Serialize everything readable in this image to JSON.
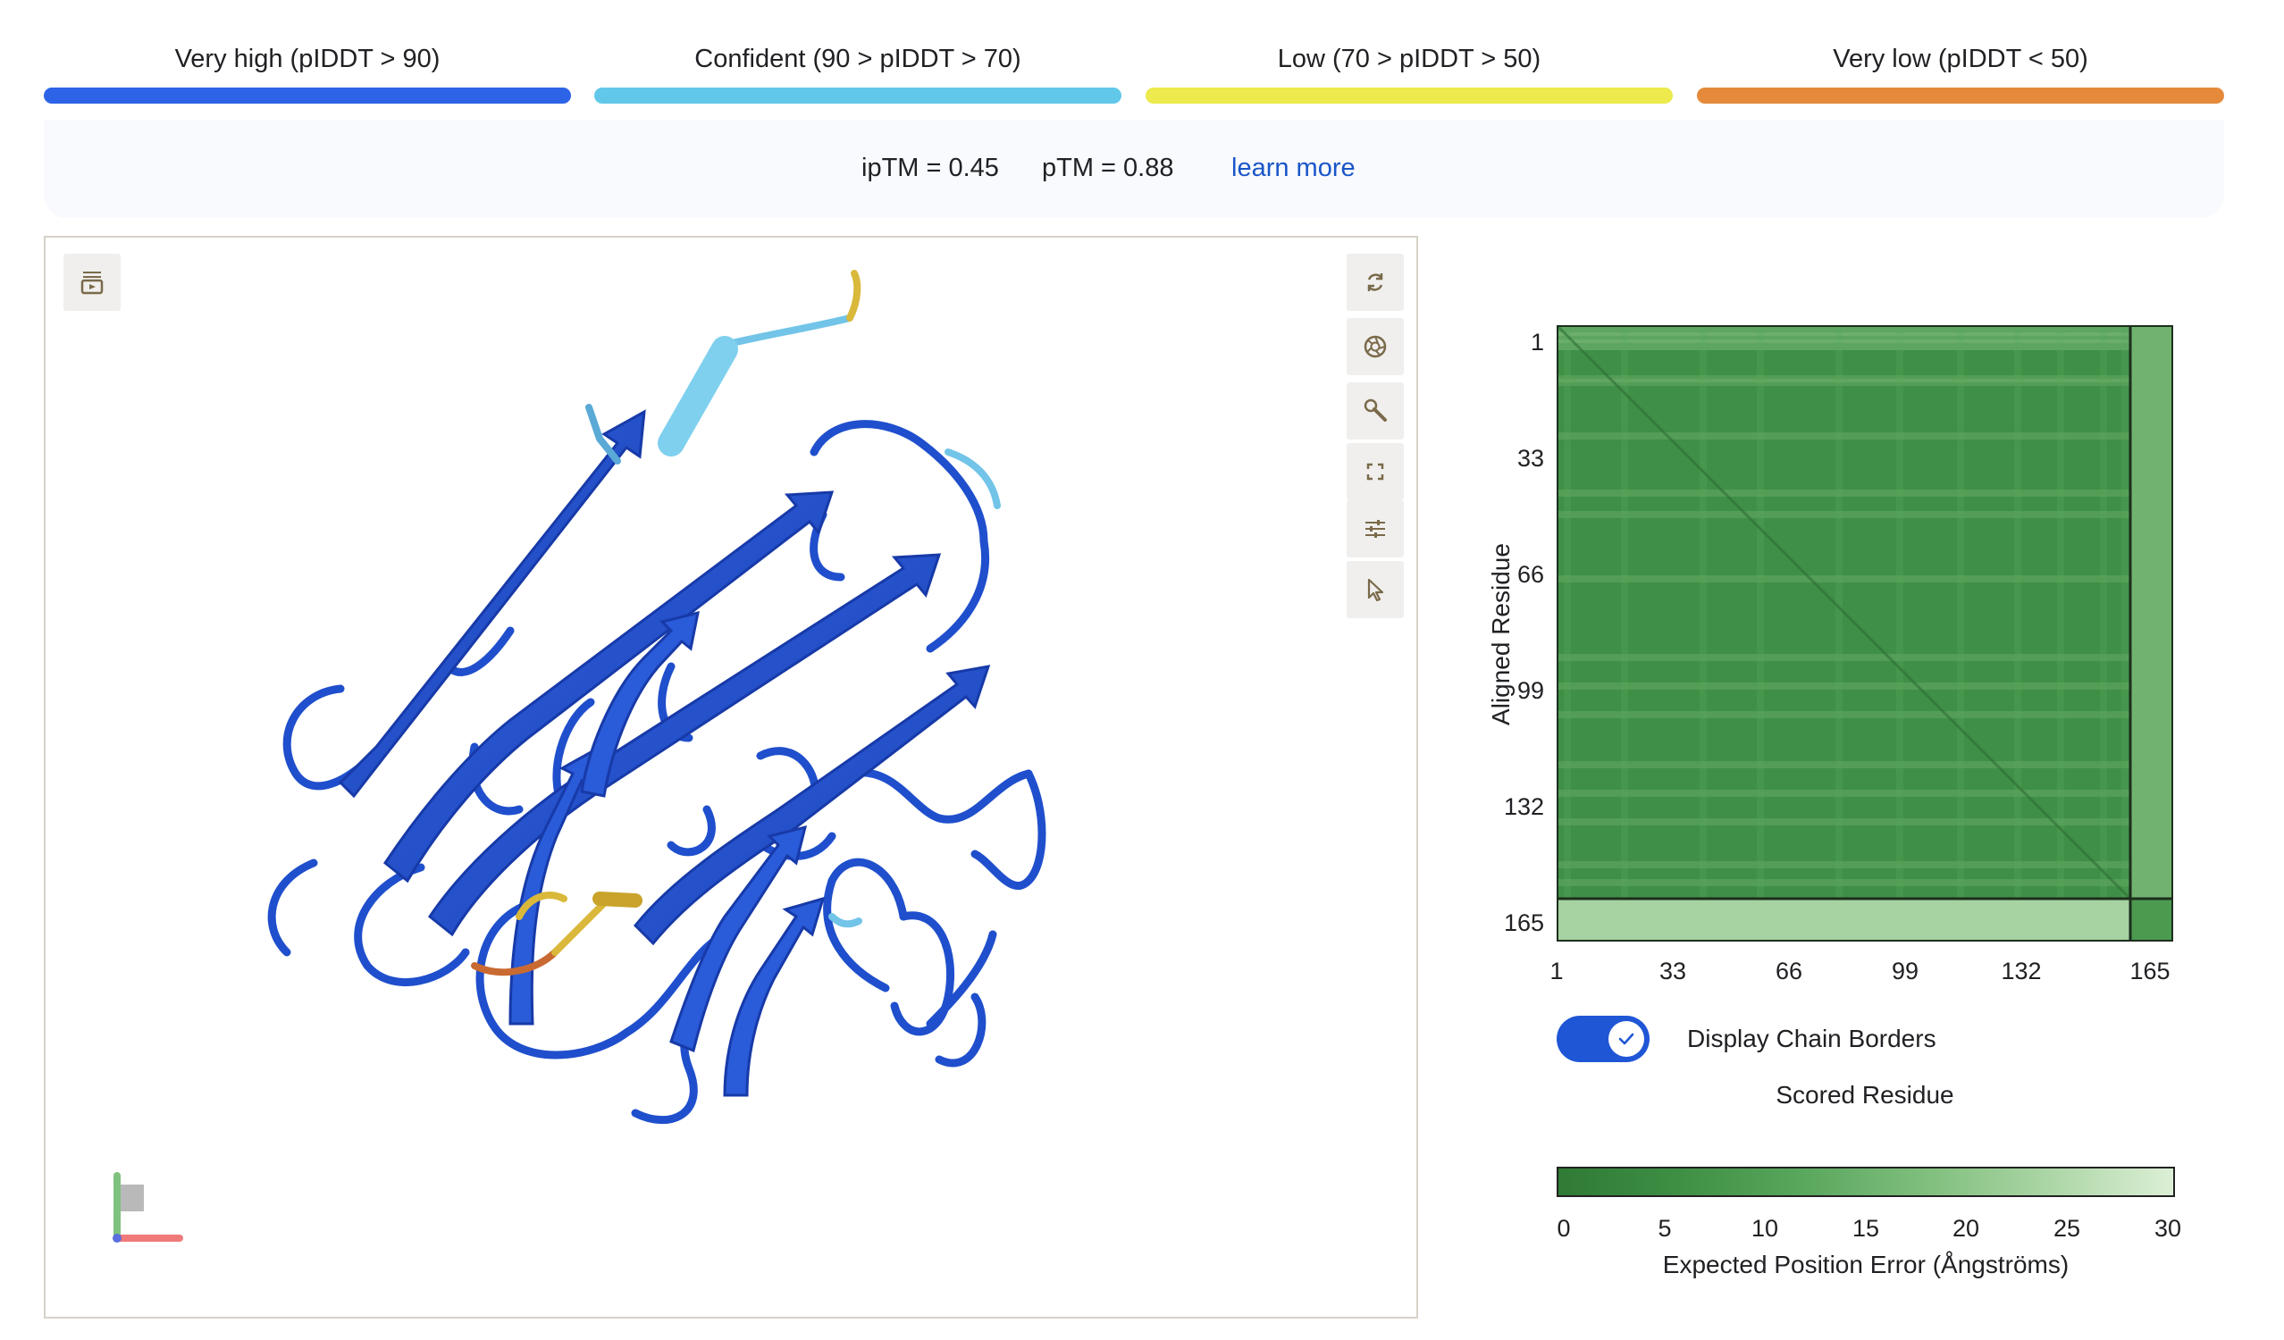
{
  "legend": {
    "items": [
      {
        "label": "Very high (pIDDT > 90)",
        "color": "#2d63e6"
      },
      {
        "label": "Confident (90 > pIDDT > 70)",
        "color": "#62c8ea"
      },
      {
        "label": "Low (70 > pIDDT > 50)",
        "color": "#ecea4c"
      },
      {
        "label": "Very low (pIDDT < 50)",
        "color": "#e48a3a"
      }
    ]
  },
  "metrics": {
    "iptm": "ipTM = 0.45",
    "ptm": "pTM = 0.88",
    "learn_more": "learn more"
  },
  "viewer": {
    "toolbar": [
      {
        "name": "reset-view-icon"
      },
      {
        "name": "screenshot-icon"
      },
      {
        "name": "tools-icon"
      },
      {
        "name": "fullscreen-icon"
      },
      {
        "name": "settings-sliders-icon"
      },
      {
        "name": "select-cursor-icon"
      }
    ],
    "top_left_button": "sequence-panel-icon",
    "colors": {
      "very_high": "#1f4fcc",
      "confident": "#72c4e8",
      "low": "#d9b83a",
      "very_low": "#c96a32"
    }
  },
  "pae": {
    "y_axis_label": "Aligned Residue",
    "y_ticks": [
      "1",
      "33",
      "66",
      "99",
      "132",
      "165"
    ],
    "x_ticks": [
      "1",
      "33",
      "66",
      "99",
      "132",
      "165"
    ],
    "toggle_label": "Display Chain Borders",
    "toggle_on": true,
    "x_axis_label": "Scored Residue",
    "colorbar_ticks": [
      "0",
      "5",
      "10",
      "15",
      "20",
      "25",
      "30"
    ],
    "colorbar_title": "Expected Position Error (Ångströms)",
    "colorbar_range": [
      0,
      30
    ],
    "chain_break_residue": 160,
    "total_residues": 170
  }
}
